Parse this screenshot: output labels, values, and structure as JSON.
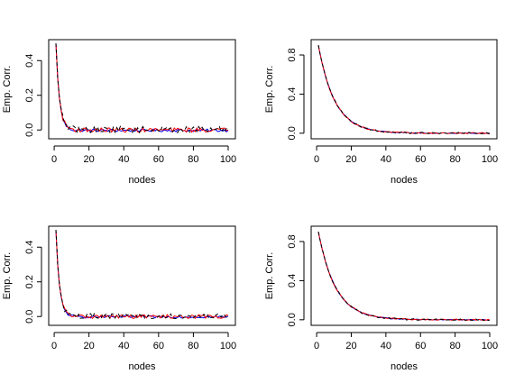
{
  "chart_data": [
    {
      "type": "line",
      "xlabel": "nodes",
      "ylabel": "Emp. Corr.",
      "xlim": [
        1,
        100
      ],
      "ylim": [
        -0.03,
        0.5
      ],
      "xticks": [
        "0",
        "20",
        "40",
        "60",
        "80",
        "100"
      ],
      "yticks": [
        "0.0",
        "0.2",
        "0.4"
      ],
      "model": {
        "y0": 0.5,
        "decay": 0.5,
        "noise": 0.008,
        "mean": 0.005
      },
      "series": [
        {
          "color": "#0000ff",
          "style": "solid",
          "values": []
        },
        {
          "color": "#ff0000",
          "style": "solid",
          "values": []
        },
        {
          "color": "#000000",
          "style": "dashed",
          "values": []
        }
      ]
    },
    {
      "type": "line",
      "xlabel": "nodes",
      "ylabel": "Emp. Corr.",
      "xlim": [
        1,
        100
      ],
      "ylim": [
        -0.02,
        0.92
      ],
      "xticks": [
        "0",
        "20",
        "40",
        "60",
        "80",
        "100"
      ],
      "yticks": [
        "0.0",
        "0.4",
        "0.8"
      ],
      "model": {
        "y0": 0.9,
        "decay": 0.105,
        "noise": 0.004,
        "mean": 0.0
      },
      "series": [
        {
          "color": "#0000ff",
          "style": "solid",
          "values": []
        },
        {
          "color": "#ff0000",
          "style": "solid",
          "values": []
        },
        {
          "color": "#000000",
          "style": "dashed",
          "values": []
        }
      ]
    },
    {
      "type": "line",
      "xlabel": "nodes",
      "ylabel": "Emp. Corr.",
      "xlim": [
        1,
        100
      ],
      "ylim": [
        -0.03,
        0.5
      ],
      "xticks": [
        "0",
        "20",
        "40",
        "60",
        "80",
        "100"
      ],
      "yticks": [
        "0.0",
        "0.2",
        "0.4"
      ],
      "model": {
        "y0": 0.5,
        "decay": 0.5,
        "noise": 0.007,
        "mean": 0.004
      },
      "series": [
        {
          "color": "#0000ff",
          "style": "solid",
          "values": []
        },
        {
          "color": "#ff0000",
          "style": "solid",
          "values": []
        },
        {
          "color": "#000000",
          "style": "dashed",
          "values": []
        }
      ]
    },
    {
      "type": "line",
      "xlabel": "nodes",
      "ylabel": "Emp. Corr.",
      "xlim": [
        1,
        100
      ],
      "ylim": [
        -0.02,
        0.92
      ],
      "xticks": [
        "0",
        "20",
        "40",
        "60",
        "80",
        "100"
      ],
      "yticks": [
        "0.0",
        "0.4",
        "0.8"
      ],
      "model": {
        "y0": 0.9,
        "decay": 0.1,
        "noise": 0.004,
        "mean": 0.0
      },
      "series": [
        {
          "color": "#0000ff",
          "style": "solid",
          "values": []
        },
        {
          "color": "#ff0000",
          "style": "solid",
          "values": []
        },
        {
          "color": "#000000",
          "style": "dashed",
          "values": []
        }
      ]
    }
  ]
}
